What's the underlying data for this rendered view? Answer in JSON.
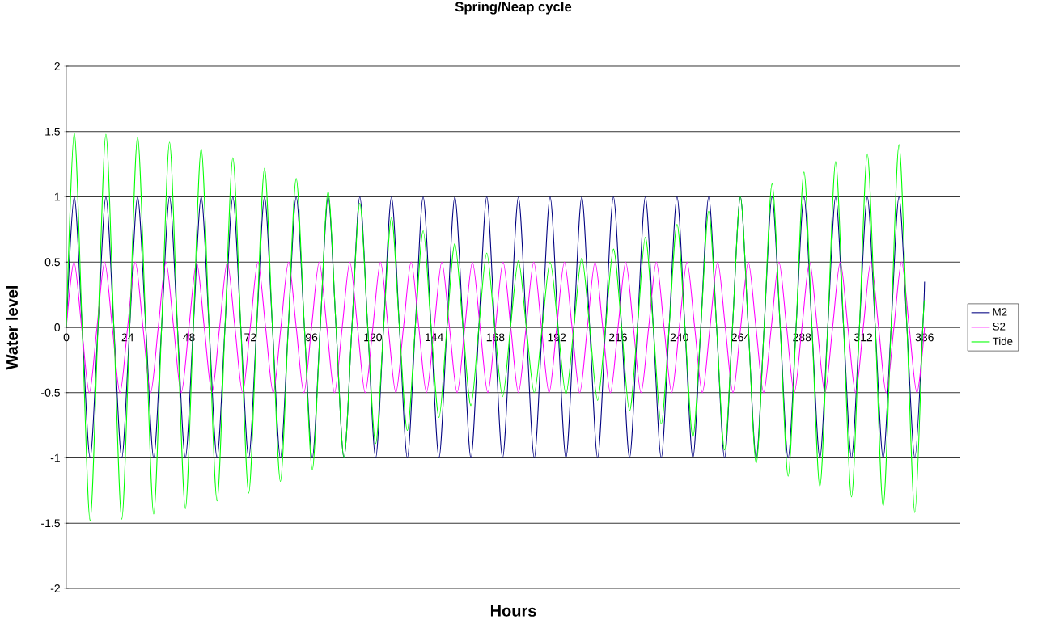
{
  "chart_data": {
    "type": "line",
    "title": "Spring/Neap cycle",
    "xlabel": "Hours",
    "ylabel": "Water level",
    "xlim": [
      0,
      350
    ],
    "xticks": [
      0,
      24,
      48,
      72,
      96,
      120,
      144,
      168,
      192,
      216,
      240,
      264,
      288,
      312,
      336
    ],
    "ylim": [
      -2,
      2
    ],
    "yticks": [
      -2,
      -1.5,
      -1,
      -0.5,
      0,
      0.5,
      1,
      1.5,
      2
    ],
    "grid": "y",
    "legend": "right",
    "marker": "none",
    "line_style": "solid",
    "series": [
      {
        "name": "M2",
        "color": "#000080",
        "x": [
          0,
          3.1,
          6.2,
          9.3,
          12.4,
          15.5,
          18.6,
          21.7,
          24.8,
          27.9,
          31.1,
          34.2,
          37.3,
          40.4,
          43.5,
          46.6,
          49.7,
          52.8,
          55.9,
          59.0,
          62.1,
          65.2,
          68.3,
          71.4,
          74.5,
          77.6,
          80.7,
          83.8,
          86.9,
          90.0,
          93.2,
          96.3,
          99.4,
          102.5,
          105.6,
          108.7,
          111.8,
          114.9,
          118.0,
          121.1,
          124.2,
          127.3,
          130.4,
          133.5,
          136.6,
          139.7,
          142.8,
          145.9,
          149.0,
          152.1,
          155.3,
          158.4,
          161.5,
          164.6,
          167.7,
          170.8,
          173.9,
          177.0,
          180.1,
          183.2,
          186.3,
          189.4,
          192.5,
          195.6,
          198.7,
          201.8,
          204.9,
          208.0,
          211.1,
          214.2,
          217.4,
          220.5,
          223.6,
          226.7,
          229.8,
          232.9,
          236.0,
          239.1,
          242.2,
          245.3,
          248.4,
          251.5,
          254.6,
          257.7,
          260.8,
          263.9,
          267.0,
          270.1,
          273.2,
          276.3,
          279.5,
          282.6,
          285.7,
          288.8,
          291.9,
          295.0,
          298.1,
          301.2,
          304.3,
          307.4,
          310.5,
          313.6,
          316.7,
          319.8,
          322.9,
          326.0,
          329.1,
          332.2,
          335.3,
          336
        ],
        "values": [
          0,
          1,
          0,
          -1,
          0,
          1,
          0,
          -1,
          0,
          1,
          0,
          -1,
          0,
          1,
          0,
          -1,
          0,
          1,
          0,
          -1,
          0,
          1,
          0,
          -1,
          0,
          1,
          0,
          -1,
          0,
          1,
          0,
          -1,
          0,
          1,
          0,
          -1,
          0,
          1,
          0,
          -1,
          0,
          1,
          0,
          -1,
          0,
          1,
          0,
          -1,
          0,
          1,
          0,
          -1,
          0,
          1,
          0,
          -1,
          0,
          1,
          0,
          -1,
          0,
          1,
          0,
          -1,
          0,
          1,
          0,
          -1,
          0,
          1,
          0,
          -1,
          0,
          1,
          0,
          -1,
          0,
          1,
          0,
          -1,
          0,
          1,
          0,
          -1,
          0,
          1,
          0,
          -1,
          0,
          1,
          0,
          -1,
          0,
          1,
          0,
          -1,
          0,
          1,
          0,
          -1,
          0,
          1,
          0,
          -1,
          0,
          1,
          0,
          -1,
          0,
          0.35
        ]
      },
      {
        "name": "S2",
        "color": "#ff00ff",
        "x": [
          0,
          3,
          6,
          9,
          12,
          15,
          18,
          21,
          24,
          27,
          30,
          33,
          36,
          39,
          42,
          45,
          48,
          51,
          54,
          57,
          60,
          63,
          66,
          69,
          72,
          75,
          78,
          81,
          84,
          87,
          90,
          93,
          96,
          99,
          102,
          105,
          108,
          111,
          114,
          117,
          120,
          123,
          126,
          129,
          132,
          135,
          138,
          141,
          144,
          147,
          150,
          153,
          156,
          159,
          162,
          165,
          168,
          171,
          174,
          177,
          180,
          183,
          186,
          189,
          192,
          195,
          198,
          201,
          204,
          207,
          210,
          213,
          216,
          219,
          222,
          225,
          228,
          231,
          234,
          237,
          240,
          243,
          246,
          249,
          252,
          255,
          258,
          261,
          264,
          267,
          270,
          273,
          276,
          279,
          282,
          285,
          288,
          291,
          294,
          297,
          300,
          303,
          306,
          309,
          312,
          315,
          318,
          321,
          324,
          327,
          330,
          333,
          336
        ],
        "values": [
          0,
          0.5,
          0,
          -0.5,
          0,
          0.5,
          0,
          -0.5,
          0,
          0.5,
          0,
          -0.5,
          0,
          0.5,
          0,
          -0.5,
          0,
          0.5,
          0,
          -0.5,
          0,
          0.5,
          0,
          -0.5,
          0,
          0.5,
          0,
          -0.5,
          0,
          0.5,
          0,
          -0.5,
          0,
          0.5,
          0,
          -0.5,
          0,
          0.5,
          0,
          -0.5,
          0,
          0.5,
          0,
          -0.5,
          0,
          0.5,
          0,
          -0.5,
          0,
          0.5,
          0,
          -0.5,
          0,
          0.5,
          0,
          -0.5,
          0,
          0.5,
          0,
          -0.5,
          0,
          0.5,
          0,
          -0.5,
          0,
          0.5,
          0,
          -0.5,
          0,
          0.5,
          0,
          -0.5,
          0,
          0.5,
          0,
          -0.5,
          0,
          0.5,
          0,
          -0.5,
          0,
          0.5,
          0,
          -0.5,
          0,
          0.5,
          0,
          -0.5,
          0,
          0.5,
          0,
          -0.5,
          0,
          0.5,
          0,
          -0.5,
          0,
          0.5,
          0,
          -0.5,
          0,
          0.5,
          0,
          -0.5,
          0,
          0.5,
          0,
          -0.5,
          0,
          0.5,
          0,
          -0.5,
          0
        ]
      },
      {
        "name": "Tide",
        "color": "#00ff00",
        "x": [
          0,
          3.1,
          6.2,
          9.3,
          12.4,
          15.5,
          18.6,
          21.7,
          24.8,
          27.9,
          31.1,
          34.2,
          37.3,
          40.4,
          43.5,
          46.6,
          49.7,
          52.8,
          55.9,
          59.0,
          62.1,
          65.2,
          68.3,
          71.4,
          74.5,
          77.6,
          80.7,
          83.8,
          86.9,
          90.0,
          93.2,
          96.3,
          99.4,
          102.5,
          105.6,
          108.7,
          111.8,
          114.9,
          118.0,
          121.1,
          124.2,
          127.3,
          130.4,
          133.5,
          136.6,
          139.7,
          142.8,
          145.9,
          149.0,
          152.1,
          155.3,
          158.4,
          161.5,
          164.6,
          167.7,
          170.8,
          173.9,
          177.0,
          180.1,
          183.2,
          186.3,
          189.4,
          192.5,
          195.6,
          198.7,
          201.8,
          204.9,
          208.0,
          211.1,
          214.2,
          217.4,
          220.5,
          223.6,
          226.7,
          229.8,
          232.9,
          236.0,
          239.1,
          242.2,
          245.3,
          248.4,
          251.5,
          254.6,
          257.7,
          260.8,
          263.9,
          267.0,
          270.1,
          273.2,
          276.3,
          279.5,
          282.6,
          285.7,
          288.8,
          291.9,
          295.0,
          298.1,
          301.2,
          304.3,
          307.4,
          310.5,
          313.6,
          316.7,
          319.8,
          322.9,
          326.0,
          329.1,
          332.2,
          335.3,
          336
        ],
        "values": [
          0,
          1.49,
          0,
          -1.48,
          0,
          1.48,
          0,
          -1.47,
          0,
          1.46,
          0,
          -1.43,
          0,
          1.42,
          0,
          -1.39,
          0,
          1.37,
          0,
          -1.33,
          0,
          1.3,
          0,
          -1.27,
          0,
          1.22,
          0,
          -1.18,
          0,
          1.14,
          0,
          -1.09,
          0,
          1.04,
          0,
          -1.0,
          0,
          0.95,
          0,
          -0.89,
          0,
          0.84,
          0,
          -0.79,
          0,
          0.74,
          0,
          -0.69,
          0,
          0.64,
          0,
          -0.6,
          0,
          0.57,
          0,
          -0.53,
          0,
          0.51,
          0,
          -0.5,
          0,
          0.5,
          0,
          -0.51,
          0,
          0.53,
          0,
          -0.56,
          0,
          0.6,
          0,
          -0.64,
          0,
          0.69,
          0,
          -0.74,
          0,
          0.79,
          0,
          -0.84,
          0,
          0.89,
          0,
          -0.94,
          0,
          1.0,
          0,
          -1.04,
          0,
          1.1,
          0,
          -1.14,
          0,
          1.19,
          0,
          -1.22,
          0,
          1.27,
          0,
          -1.3,
          0,
          1.33,
          0,
          -1.37,
          0,
          1.4,
          0,
          -1.42,
          0,
          0.2
        ]
      }
    ]
  }
}
